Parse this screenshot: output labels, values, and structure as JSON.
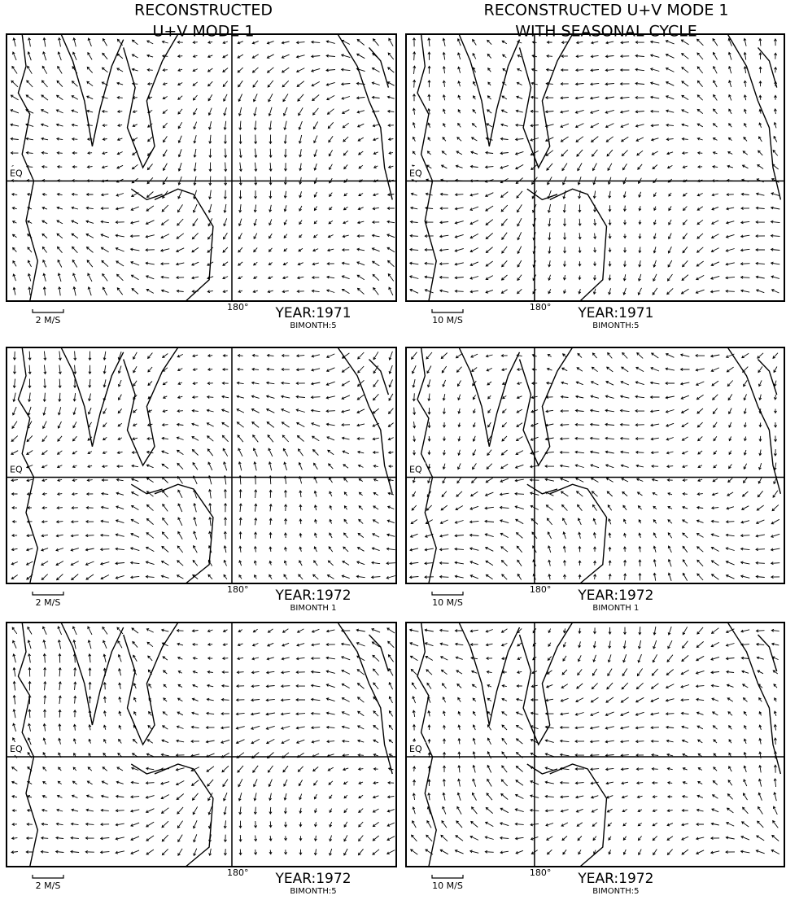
{
  "columns": [
    {
      "title": [
        "RECONSTRUCTED",
        "U+V MODE 1"
      ],
      "panels": [
        {
          "equator": "EQ",
          "meridian": "180°",
          "scale": "2 M/S",
          "year": "YEAR:1971",
          "bimonth": "BIMONTH:5"
        },
        {
          "equator": "EQ",
          "meridian": "180°",
          "scale": "2 M/S",
          "year": "YEAR:1972",
          "bimonth": "BIMONTH 1"
        },
        {
          "equator": "EQ",
          "meridian": "180°",
          "scale": "2 M/S",
          "year": "YEAR:1972",
          "bimonth": "BIMONTH:5"
        }
      ]
    },
    {
      "title": [
        "RECONSTRUCTED U+V MODE 1",
        "WITH SEASONAL CYCLE"
      ],
      "panels": [
        {
          "equator": "EQ",
          "meridian": "180°",
          "scale": "10 M/S",
          "year": "YEAR:1971",
          "bimonth": "BIMONTH:5"
        },
        {
          "equator": "EQ",
          "meridian": "180°",
          "scale": "10 M/S",
          "year": "YEAR:1972",
          "bimonth": "BIMONTH 1"
        },
        {
          "equator": "EQ",
          "meridian": "180°",
          "scale": "10 M/S",
          "year": "YEAR:1972",
          "bimonth": "BIMONTH:5"
        }
      ]
    }
  ]
}
